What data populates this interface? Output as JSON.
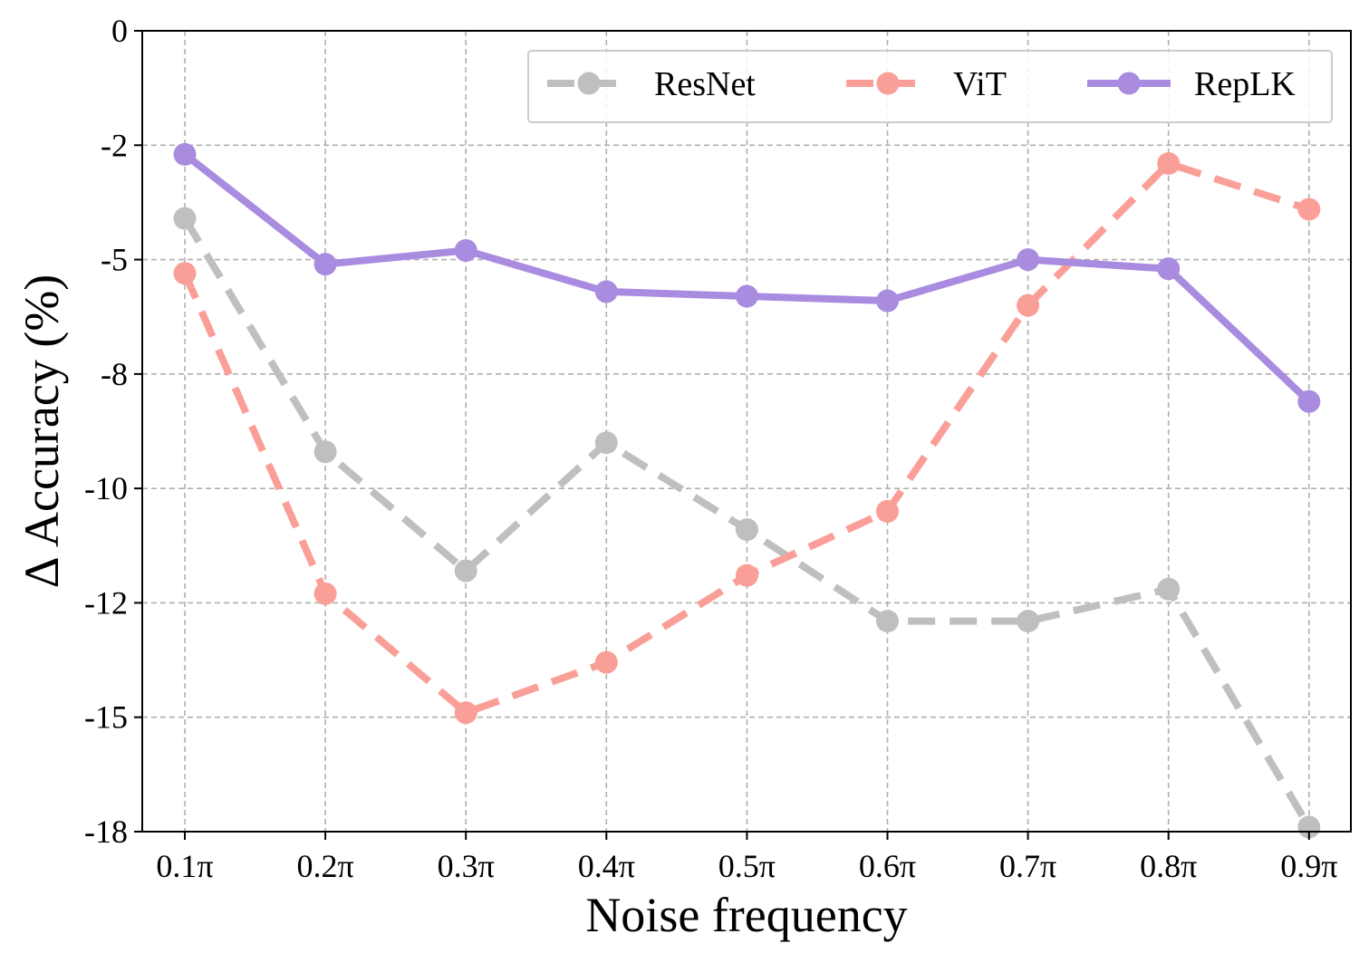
{
  "chart_data": {
    "type": "line",
    "title": "",
    "xlabel": "Noise frequency",
    "ylabel": "Δ Accuracy (%)",
    "categories": [
      "0.1π",
      "0.2π",
      "0.3π",
      "0.4π",
      "0.5π",
      "0.6π",
      "0.7π",
      "0.8π",
      "0.9π"
    ],
    "ylim": [
      -17.5,
      0
    ],
    "y_tick_values": [
      0,
      -2.5,
      -5,
      -7.5,
      -10,
      -12.5,
      -15,
      -17.5
    ],
    "y_tick_labels": [
      "0",
      "-2",
      "-5",
      "-8",
      "-10",
      "-12",
      "-15",
      "-18"
    ],
    "grid": true,
    "legend_position": "top-right",
    "series": [
      {
        "name": "ResNet",
        "color": "#bfbfbf",
        "style": "dashed",
        "values": [
          -4.1,
          -9.2,
          -11.8,
          -9.0,
          -10.9,
          -12.9,
          -12.9,
          -12.2,
          -17.4
        ]
      },
      {
        "name": "ViT",
        "color": "#fa9f98",
        "style": "dashed",
        "values": [
          -5.3,
          -12.3,
          -14.9,
          -13.8,
          -11.9,
          -10.5,
          -6.0,
          -2.9,
          -3.9
        ]
      },
      {
        "name": "RepLK",
        "color": "#a98bdf",
        "style": "solid",
        "values": [
          -2.7,
          -5.1,
          -4.8,
          -5.7,
          -5.8,
          -5.9,
          -5.0,
          -5.2,
          -8.1
        ]
      }
    ]
  }
}
